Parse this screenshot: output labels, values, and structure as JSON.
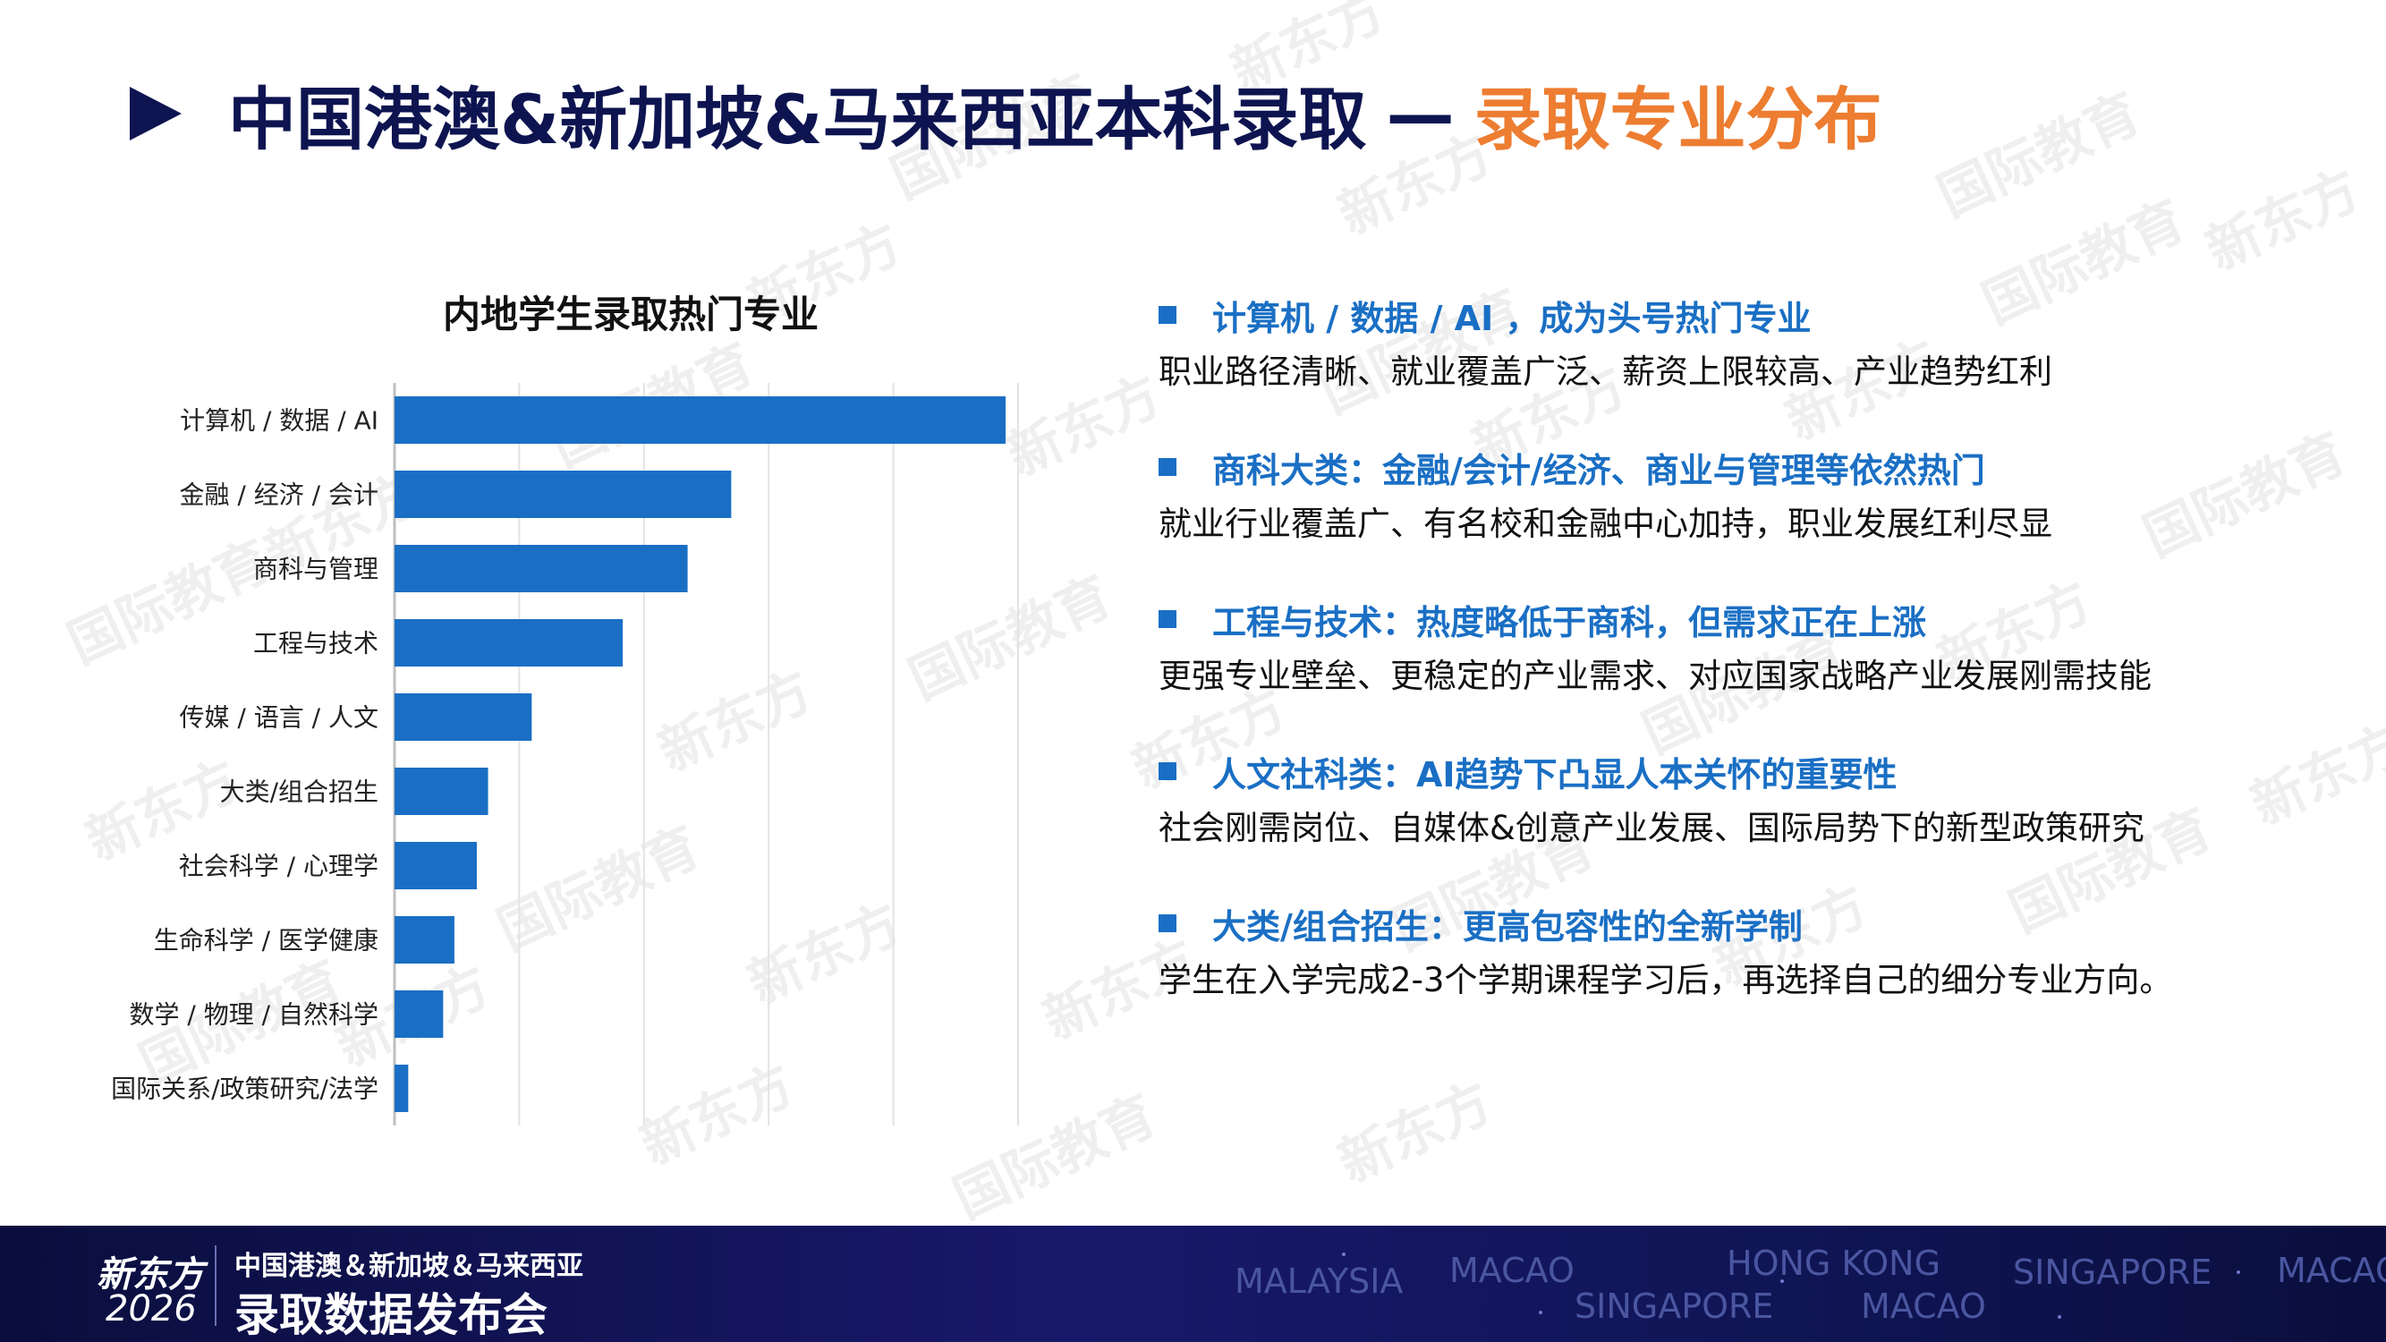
{
  "title": {
    "main": "中国港澳&新加坡&马来西亚本科录取",
    "dash": "—",
    "accent": "录取专业分布"
  },
  "watermark": {
    "line1": "新东方",
    "line2": "国际教育"
  },
  "chart_data": {
    "type": "bar",
    "orientation": "horizontal",
    "title": "内地学生录取热门专业",
    "categories": [
      "计算机 / 数据 / AI",
      "金融 / 经济 / 会计",
      "商科与管理",
      "工程与技术",
      "传媒 / 语言 / 人文",
      "大类/组合招生",
      "社会科学 / 心理学",
      "生命科学 / 医学健康",
      "数学 / 物理 / 自然科学",
      "国际关系/政策研究/法学"
    ],
    "values": [
      49,
      27,
      23.5,
      18.3,
      11,
      7.5,
      6.6,
      4.8,
      3.9,
      1.1
    ],
    "xlim": [
      0,
      50
    ],
    "grid": true,
    "bar_color": "#1a6fc4",
    "xlabel": "",
    "ylabel": ""
  },
  "bullets": [
    {
      "head": "计算机 / 数据 / AI ，成为头号热门专业",
      "desc": "职业路径清晰、就业覆盖广泛、薪资上限较高、产业趋势红利"
    },
    {
      "head": "商科大类：金融/会计/经济、商业与管理等依然热门",
      "desc": "就业行业覆盖广、有名校和金融中心加持，职业发展红利尽显"
    },
    {
      "head": "工程与技术：热度略低于商科，但需求正在上涨",
      "desc": "更强专业壁垒、更稳定的产业需求、对应国家战略产业发展刚需技能"
    },
    {
      "head": "人文社科类：AI趋势下凸显人本关怀的重要性",
      "desc": "社会刚需岗位、自媒体&创意产业发展、国际局势下的新型政策研究"
    },
    {
      "head": "大类/组合招生：更高包容性的全新学制",
      "desc": "学生在入学完成2-3个学期课程学习后，再选择自己的细分专业方向。"
    }
  ],
  "footer": {
    "logo": "新东方",
    "year": "2026",
    "subtitle": "中国港澳＆新加坡＆马来西亚",
    "event": "录取数据发布会",
    "cities": [
      "MALAYSIA",
      "MACAO",
      "HONG KONG",
      "SINGAPORE",
      "MACAO",
      "SINGAPORE",
      "MACAO"
    ]
  },
  "colors": {
    "navy": "#0d1450",
    "accent": "#ed7d31",
    "blue": "#1a6fc4"
  }
}
